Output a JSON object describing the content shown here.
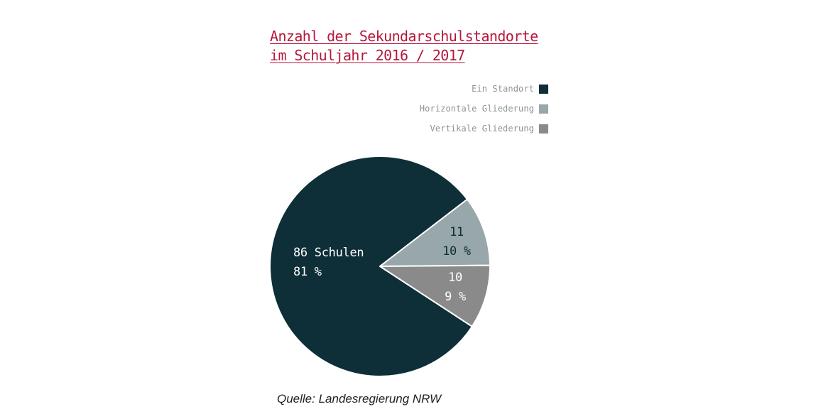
{
  "chart_data": {
    "type": "pie",
    "title_lines": [
      "Anzahl der Sekundarschulstandorte",
      "im Schuljahr 2016 / 2017"
    ],
    "legend": [
      "Ein Standort",
      "Horizontale Gliederung",
      "Vertikale Gliederung"
    ],
    "legend_placement": "top-right",
    "slices": [
      {
        "name": "Ein Standort",
        "value": 86,
        "percent_label": "81 %",
        "count_label": "86 Schulen",
        "color": "#0e2e38",
        "text_color": "#ffffff"
      },
      {
        "name": "Horizontale Gliederung",
        "value": 11,
        "percent_label": "10 %",
        "count_label": "11",
        "color": "#97a7aa",
        "text_color": "#0e2e38"
      },
      {
        "name": "Vertikale Gliederung",
        "value": 10,
        "percent_label": "9 %",
        "count_label": "10",
        "color": "#8a8a8a",
        "text_color": "#ffffff"
      }
    ]
  },
  "source": "Quelle: Landesregierung NRW"
}
